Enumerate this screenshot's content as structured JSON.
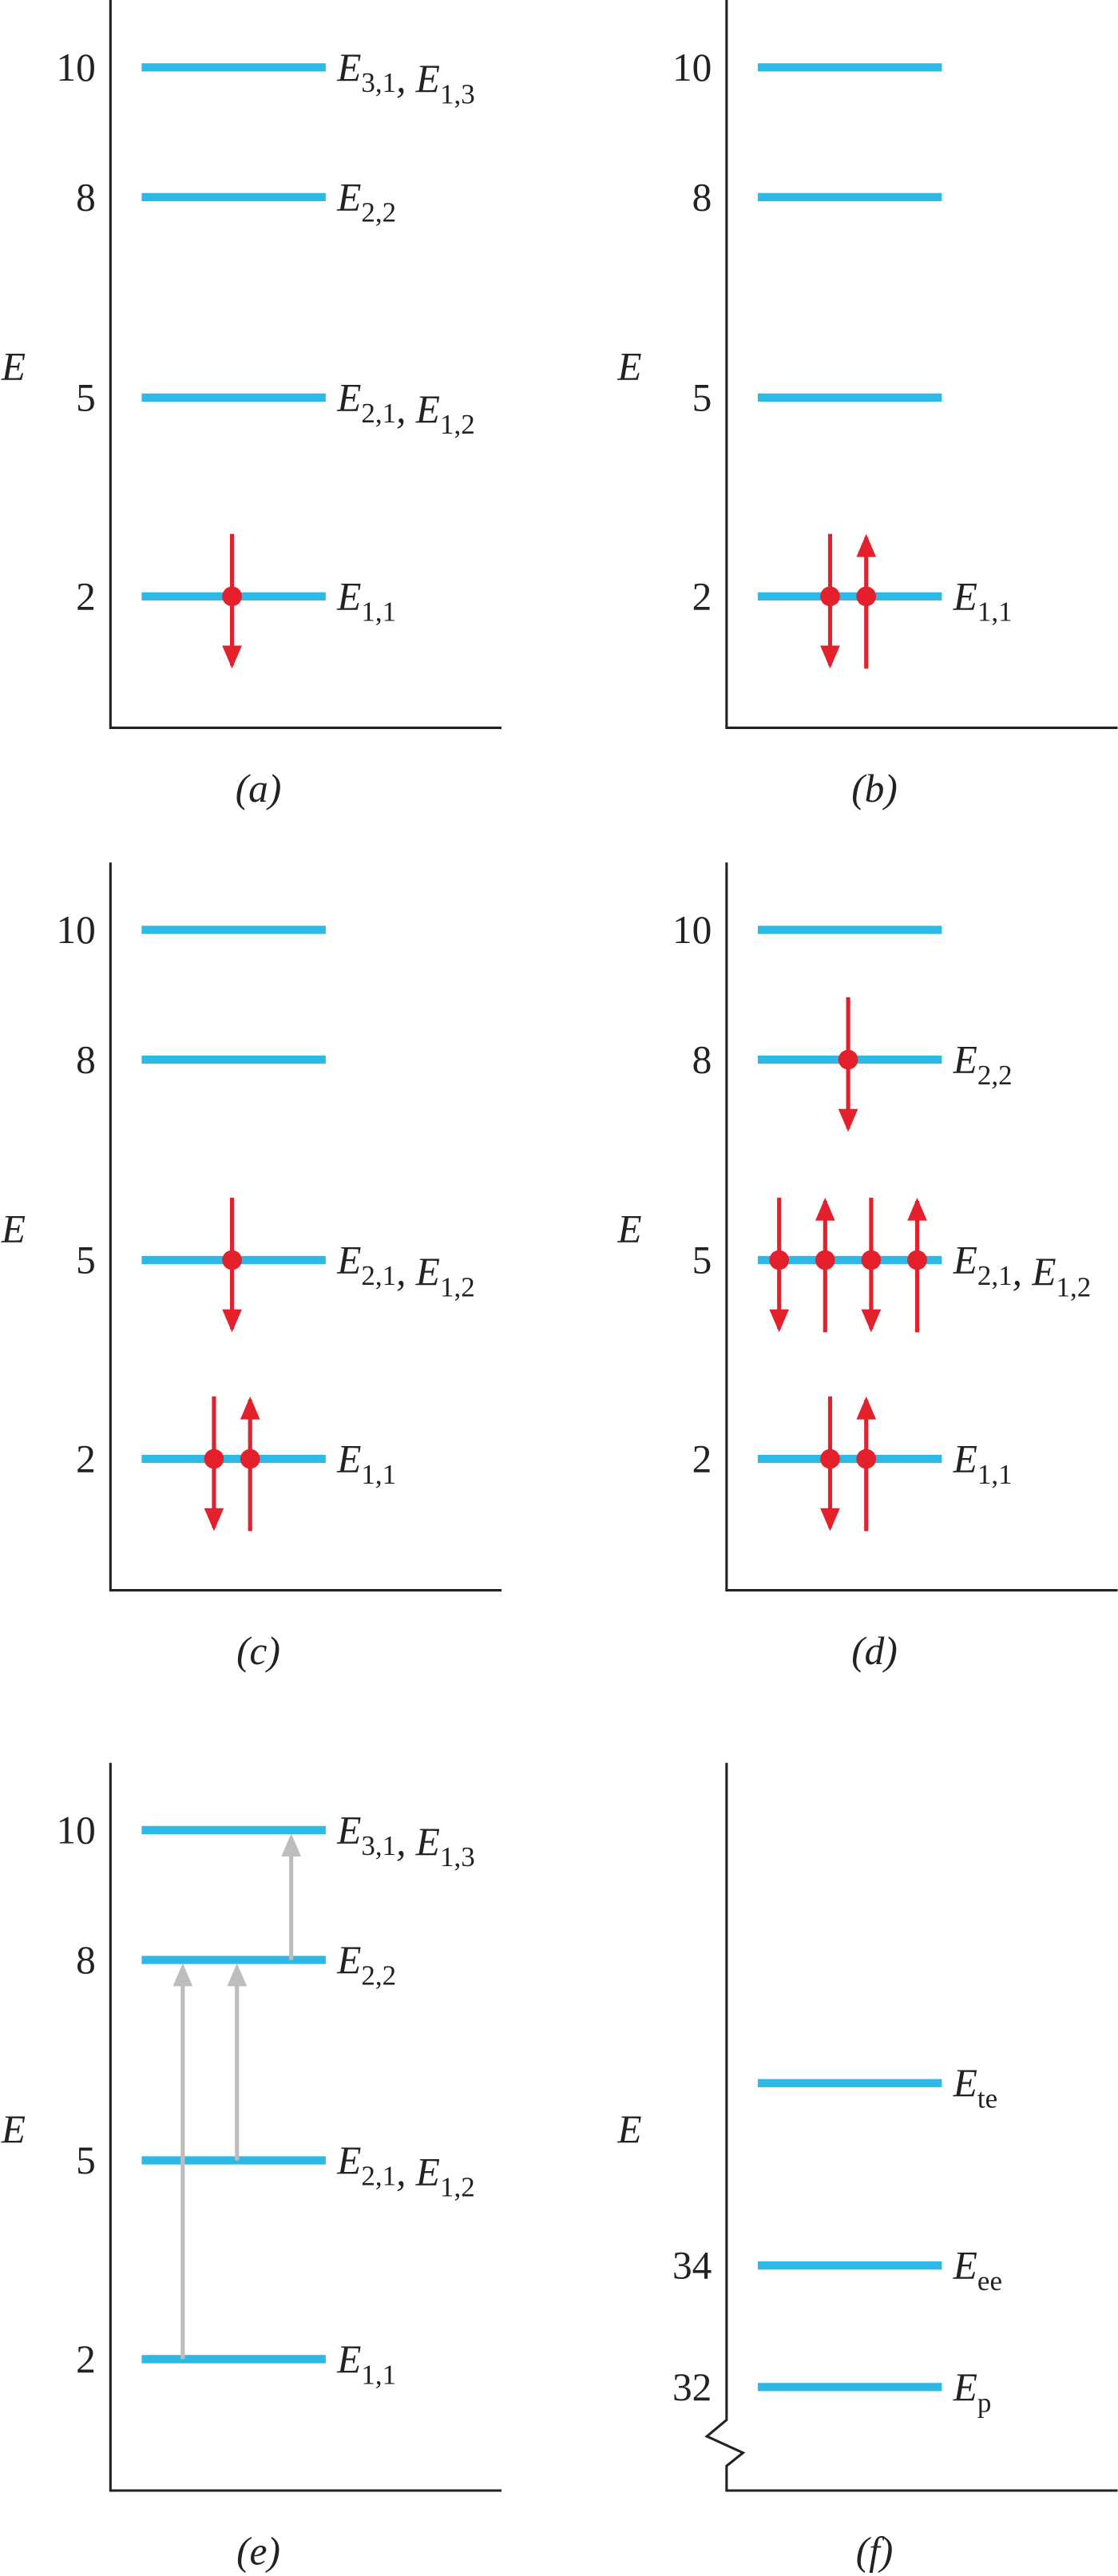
{
  "axis_label": "E",
  "panels": [
    {
      "caption": "(a)",
      "ticks": [
        "10",
        "8",
        "5",
        "2"
      ],
      "level_labels": [
        [
          {
            "text": "E",
            "sub": "3,1"
          },
          {
            "text": ", E",
            "sub": "1,3"
          }
        ],
        [
          {
            "text": "E",
            "sub": "2,2"
          }
        ],
        [
          {
            "text": "E",
            "sub": "2,1"
          },
          {
            "text": ", E",
            "sub": "1,2"
          }
        ],
        [
          {
            "text": "E",
            "sub": "1,1"
          }
        ]
      ]
    },
    {
      "caption": "(b)",
      "ticks": [
        "10",
        "8",
        "5",
        "2"
      ],
      "level_labels": [
        null,
        null,
        null,
        [
          {
            "text": "E",
            "sub": "1,1"
          }
        ]
      ]
    },
    {
      "caption": "(c)",
      "ticks": [
        "10",
        "8",
        "5",
        "2"
      ],
      "level_labels": [
        null,
        null,
        [
          {
            "text": "E",
            "sub": "2,1"
          },
          {
            "text": ", E",
            "sub": "1,2"
          }
        ],
        [
          {
            "text": "E",
            "sub": "1,1"
          }
        ]
      ]
    },
    {
      "caption": "(d)",
      "ticks": [
        "10",
        "8",
        "5",
        "2"
      ],
      "level_labels": [
        null,
        [
          {
            "text": "E",
            "sub": "2,2"
          }
        ],
        [
          {
            "text": "E",
            "sub": "2,1"
          },
          {
            "text": ", E",
            "sub": "1,2"
          }
        ],
        [
          {
            "text": "E",
            "sub": "1,1"
          }
        ]
      ]
    },
    {
      "caption": "(e)",
      "ticks": [
        "10",
        "8",
        "5",
        "2"
      ],
      "level_labels": [
        [
          {
            "text": "E",
            "sub": "3,1"
          },
          {
            "text": ", E",
            "sub": "1,3"
          }
        ],
        [
          {
            "text": "E",
            "sub": "2,2"
          }
        ],
        [
          {
            "text": "E",
            "sub": "2,1"
          },
          {
            "text": ", E",
            "sub": "1,2"
          }
        ],
        [
          {
            "text": "E",
            "sub": "1,1"
          }
        ]
      ]
    },
    {
      "caption": "(f)",
      "ticks": [
        null,
        "34",
        "32"
      ],
      "level_labels": [
        [
          {
            "text": "E",
            "sub": "te"
          }
        ],
        [
          {
            "text": "E",
            "sub": "ee"
          }
        ],
        [
          {
            "text": "E",
            "sub": "p"
          }
        ]
      ]
    }
  ]
}
